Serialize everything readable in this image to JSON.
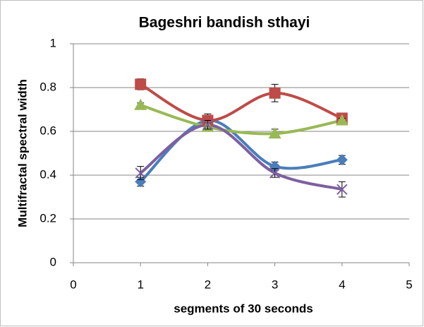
{
  "chart_data": {
    "type": "line",
    "title": "Bageshri bandish sthayi",
    "xlabel": "segments of 30 seconds",
    "ylabel": "Multifractal spectral width",
    "x": [
      1,
      2,
      3,
      4
    ],
    "series": [
      {
        "color": "#4a7ebb",
        "marker": "diamond",
        "values": [
          0.37,
          0.65,
          0.44,
          0.47
        ],
        "errors": [
          0.02,
          0.02,
          0.02,
          0.02
        ]
      },
      {
        "color": "#be4b48",
        "marker": "square",
        "values": [
          0.815,
          0.65,
          0.775,
          0.66
        ],
        "errors": [
          0.025,
          0.03,
          0.04,
          0.02
        ]
      },
      {
        "color": "#98b954",
        "marker": "triangle",
        "values": [
          0.72,
          0.62,
          0.59,
          0.65
        ],
        "errors": [
          0.01,
          0.02,
          0.02,
          0.01
        ]
      },
      {
        "color": "#7d60a0",
        "marker": "x",
        "values": [
          0.41,
          0.63,
          0.41,
          0.335
        ],
        "errors": [
          0.03,
          0.02,
          0.02,
          0.035
        ]
      }
    ],
    "xlim": [
      0,
      5
    ],
    "xticks": [
      0,
      1,
      2,
      3,
      4,
      5
    ],
    "ylim": [
      0,
      1
    ],
    "yticks": [
      0,
      0.2,
      0.4,
      0.6,
      0.8,
      1
    ],
    "grid": true,
    "smooth": true
  }
}
